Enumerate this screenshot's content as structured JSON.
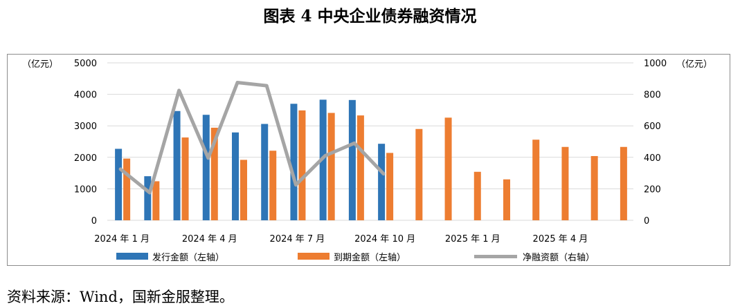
{
  "title": "图表 4  中央企业债券融资情况",
  "source": "资料来源：Wind，国新金服整理。",
  "colors": {
    "issue": "#2E75B6",
    "maturity": "#ED7D31",
    "net": "#A5A5A5"
  },
  "chart_data": {
    "type": "bar+line",
    "left_axis": {
      "unit": "（亿元）",
      "ticks": [
        0,
        1000,
        2000,
        3000,
        4000,
        5000
      ],
      "ylim": [
        0,
        5000
      ]
    },
    "right_axis": {
      "unit": "（亿元）",
      "ticks": [
        0,
        200,
        400,
        600,
        800,
        1000
      ],
      "ylim": [
        0,
        1000
      ]
    },
    "categories": [
      "2024-01",
      "2024-02",
      "2024-03",
      "2024-04",
      "2024-05",
      "2024-06",
      "2024-07",
      "2024-08",
      "2024-09",
      "2024-10",
      "2024-11",
      "2024-12",
      "2025-01",
      "2025-02",
      "2025-03",
      "2025-04",
      "2025-05",
      "2025-06"
    ],
    "x_tick_labels": [
      {
        "index": 0,
        "label": "2024 年 1 月"
      },
      {
        "index": 3,
        "label": "2024 年 4 月"
      },
      {
        "index": 6,
        "label": "2024 年 7 月"
      },
      {
        "index": 9,
        "label": "2024 年 10 月"
      },
      {
        "index": 12,
        "label": "2025 年 1 月"
      },
      {
        "index": 15,
        "label": "2025 年 4 月"
      }
    ],
    "series": [
      {
        "name": "发行金额（左轴）",
        "type": "bar",
        "axis": "left",
        "values": [
          2270,
          1400,
          3470,
          3350,
          2790,
          3060,
          3700,
          3830,
          3820,
          2430,
          null,
          null,
          null,
          null,
          null,
          null,
          null,
          null
        ]
      },
      {
        "name": "到期金额（左轴）",
        "type": "bar",
        "axis": "left",
        "values": [
          1960,
          1240,
          2630,
          2940,
          1920,
          2210,
          3490,
          3410,
          3330,
          2140,
          2900,
          3260,
          1540,
          1300,
          2560,
          2330,
          2040,
          2330
        ]
      },
      {
        "name": "净融资额（右轴）",
        "type": "line",
        "axis": "right",
        "values": [
          325,
          175,
          825,
          395,
          875,
          855,
          225,
          410,
          490,
          295,
          null,
          null,
          null,
          null,
          null,
          null,
          null,
          null
        ]
      }
    ]
  }
}
